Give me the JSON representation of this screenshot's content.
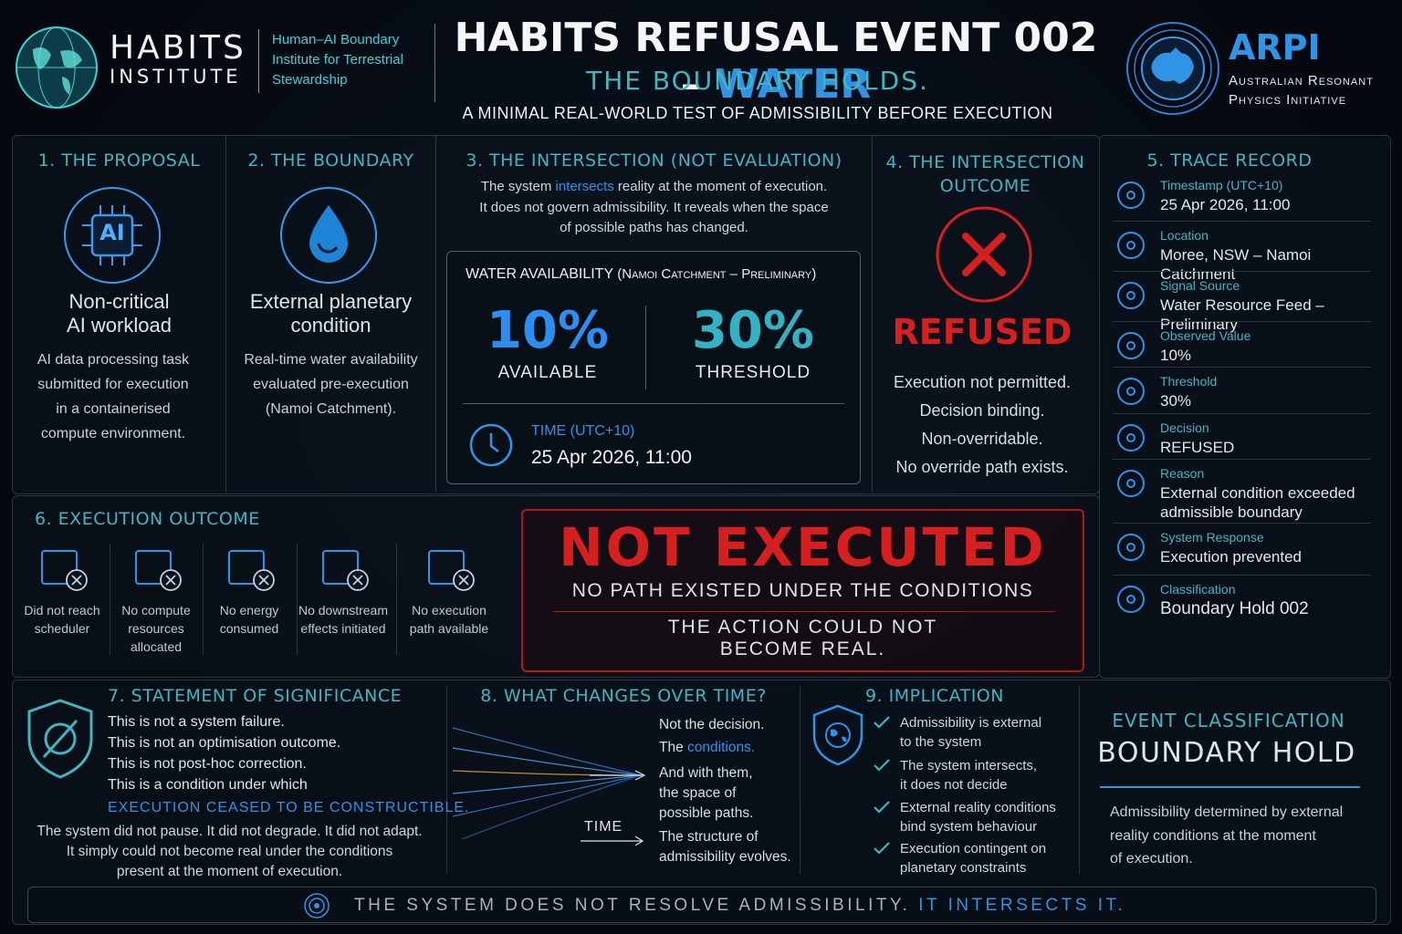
{
  "header": {
    "logo_left": {
      "name": "HABITS",
      "sub": "INSTITUTE",
      "tagline": [
        "Human–AI Boundary",
        "Institute for Terrestrial",
        "Stewardship"
      ]
    },
    "title_main": "HABITS REFUSAL EVENT 002 –",
    "title_accent": "WATER",
    "subtitle": "THE BOUNDARY HOLDS.",
    "tagline": "A MINIMAL REAL-WORLD TEST OF ADMISSIBILITY BEFORE EXECUTION",
    "logo_right": {
      "name": "ARPI",
      "sub": [
        "Australian Resonant",
        "Physics Initiative"
      ]
    }
  },
  "proposal": {
    "title": "1. THE PROPOSAL",
    "icon": "AI",
    "heading": [
      "Non-critical",
      "AI workload"
    ],
    "body": [
      "AI data processing task",
      "submitted for execution",
      "in a containerised",
      "compute environment."
    ]
  },
  "boundary": {
    "title": "2. THE BOUNDARY",
    "heading": [
      "External planetary",
      "condition"
    ],
    "body": [
      "Real-time water availability",
      "evaluated pre-execution",
      "(Namoi Catchment)."
    ]
  },
  "intersection": {
    "title": "3. THE INTERSECTION (NOT EVALUATION)",
    "desc_a": "The system ",
    "desc_b": "intersects",
    "desc_c": " reality at the moment of execution.",
    "desc_2": "It does not govern admissibility. It reveals when the space",
    "desc_3": "of possible paths has changed.",
    "panel_title": "WATER AVAILABILITY",
    "panel_sub": "(Namoi Catchment – Preliminary)",
    "available": "10%",
    "available_label": "AVAILABLE",
    "threshold": "30%",
    "threshold_label": "THRESHOLD",
    "time_label": "TIME (UTC+10)",
    "time": "25 Apr 2026, 11:00"
  },
  "outcome": {
    "title": [
      "4. THE INTERSECTION",
      "OUTCOME"
    ],
    "status": "REFUSED",
    "lines": [
      "Execution not permitted.",
      "Decision binding.",
      "Non-overridable.",
      "No override path exists."
    ]
  },
  "trace": {
    "title": "5. TRACE RECORD",
    "items": [
      {
        "label": "Timestamp (UTC+10)",
        "value": "25 Apr 2026, 11:00"
      },
      {
        "label": "Location",
        "value": "Moree, NSW – Namoi Catchment"
      },
      {
        "label": "Signal Source",
        "value": "Water Resource Feed – Preliminary"
      },
      {
        "label": "Observed Value",
        "value": "10%"
      },
      {
        "label": "Threshold",
        "value": "30%"
      },
      {
        "label": "Decision",
        "value": "REFUSED"
      },
      {
        "label": "Reason",
        "value": "External condition exceeded admissible boundary"
      },
      {
        "label": "System Response",
        "value": "Execution prevented"
      },
      {
        "label": "Classification",
        "value": "Boundary Hold 002"
      }
    ]
  },
  "execution": {
    "title": "6. EXECUTION OUTCOME",
    "items": [
      "Did not reach scheduler",
      "No compute resources allocated",
      "No energy consumed",
      "No downstream effects initiated",
      "No execution path available"
    ],
    "banner": "NOT EXECUTED",
    "banner_sub": "NO PATH EXISTED UNDER THE CONDITIONS",
    "banner_note": [
      "THE ACTION COULD NOT",
      "BECOME REAL."
    ]
  },
  "significance": {
    "title": "7. STATEMENT OF SIGNIFICANCE",
    "lines": [
      "This is not a system failure.",
      "This is not an optimisation outcome.",
      "This is not post-hoc correction.",
      "This is a condition under which"
    ],
    "accent": "EXECUTION CEASED TO BE CONSTRUCTIBLE.",
    "footer": [
      "The system did not pause. It did not degrade. It did not adapt.",
      "It simply could not become real under the conditions",
      "present at the moment of execution."
    ]
  },
  "changes": {
    "title": "8. WHAT CHANGES OVER TIME?",
    "line_1": "Not the decision.",
    "line_2a": "The ",
    "line_2b": "conditions.",
    "line_3": [
      "And with them,",
      "the space of",
      "possible paths."
    ],
    "line_4": [
      "The structure of",
      "admissibility evolves."
    ],
    "axis": "TIME"
  },
  "implication": {
    "title": "9. IMPLICATION",
    "items": [
      [
        "Admissibility is external",
        "to the system"
      ],
      [
        "The system intersects,",
        "it does not decide"
      ],
      [
        "External reality conditions",
        "bind system behaviour"
      ],
      [
        "Execution contingent on",
        "planetary constraints"
      ]
    ]
  },
  "classification": {
    "label": "EVENT CLASSIFICATION",
    "value": "BOUNDARY HOLD",
    "description": [
      "Admissibility determined by external",
      "reality conditions at the moment",
      "of execution."
    ]
  },
  "footer": {
    "main": "THE SYSTEM DOES NOT RESOLVE ADMISSIBILITY.",
    "accent": "IT INTERSECTS IT."
  }
}
